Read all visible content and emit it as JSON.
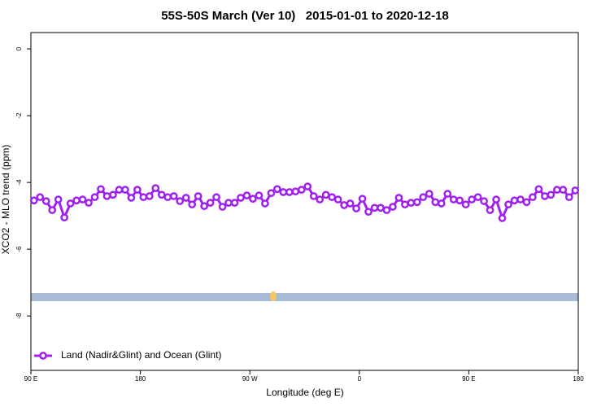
{
  "chart_data": {
    "type": "line",
    "title": "55S-50S March (Ver 10)   2015-01-01 to 2020-12-18",
    "x_label": "Longitude (deg E)",
    "y_label": "XCO2 - MLO trend (ppm)",
    "x": [
      92.5,
      97.5,
      102.5,
      107.5,
      112.5,
      117.5,
      122.5,
      127.5,
      132.5,
      137.5,
      142.5,
      147.5,
      152.5,
      157.5,
      162.5,
      167.5,
      172.5,
      177.5,
      182.5,
      187.5,
      192.5,
      197.5,
      202.5,
      207.5,
      212.5,
      217.5,
      222.5,
      227.5,
      232.5,
      237.5,
      242.5,
      247.5,
      252.5,
      257.5,
      262.5,
      267.5,
      272.5,
      277.5,
      282.5,
      287.5,
      292.5,
      297.5,
      302.5,
      307.5,
      312.5,
      317.5,
      322.5,
      327.5,
      332.5,
      337.5,
      342.5,
      347.5,
      352.5,
      357.5,
      362.5,
      367.5,
      372.5,
      377.5,
      382.5,
      387.5,
      392.5,
      397.5,
      402.5,
      407.5,
      412.5,
      417.5,
      422.5,
      427.5,
      432.5,
      437.5,
      442.5,
      447.5,
      452.5,
      457.5,
      462.5,
      467.5,
      472.5,
      477.5,
      482.5,
      487.5,
      492.5,
      497.5,
      502.5,
      507.5,
      512.5,
      517.5,
      522.5,
      527.5,
      532.5,
      537.5
    ],
    "series": [
      {
        "name": "Land (Nadir&Glint) and Ocean (Glint)",
        "color": "#a020f0",
        "values": [
          -4.54,
          -4.44,
          -4.56,
          -4.83,
          -4.51,
          -5.05,
          -4.63,
          -4.54,
          -4.51,
          -4.61,
          -4.44,
          -4.2,
          -4.41,
          -4.37,
          -4.22,
          -4.22,
          -4.46,
          -4.22,
          -4.44,
          -4.41,
          -4.17,
          -4.37,
          -4.44,
          -4.41,
          -4.56,
          -4.46,
          -4.66,
          -4.41,
          -4.71,
          -4.61,
          -4.44,
          -4.73,
          -4.61,
          -4.61,
          -4.46,
          -4.39,
          -4.49,
          -4.39,
          -4.63,
          -4.32,
          -4.2,
          -4.29,
          -4.29,
          -4.27,
          -4.22,
          -4.12,
          -4.41,
          -4.51,
          -4.37,
          -4.44,
          -4.51,
          -4.68,
          -4.63,
          -4.78,
          -4.49,
          -4.88,
          -4.76,
          -4.76,
          -4.83,
          -4.73,
          -4.46,
          -4.66,
          -4.61,
          -4.59,
          -4.44,
          -4.34,
          -4.59,
          -4.63,
          -4.34,
          -4.51,
          -4.54,
          -4.66,
          -4.51,
          -4.44,
          -4.56,
          -4.83,
          -4.51,
          -5.07,
          -4.66,
          -4.54,
          -4.51,
          -4.59,
          -4.44,
          -4.2,
          -4.41,
          -4.37,
          -4.22,
          -4.22,
          -4.44,
          -4.24
        ]
      }
    ],
    "xlim": [
      90,
      540
    ],
    "xticks": [
      {
        "value": 90,
        "label": "90 E"
      },
      180,
      {
        "value": 270,
        "label": "90 W"
      },
      {
        "value": 360,
        "label": "0"
      },
      {
        "value": 450,
        "label": "90 E"
      },
      180
    ],
    "ylim": [
      -9.63,
      0.49
    ],
    "yticks": [
      0,
      -2,
      -4,
      -6,
      -8
    ],
    "legend": "bottom-left"
  }
}
